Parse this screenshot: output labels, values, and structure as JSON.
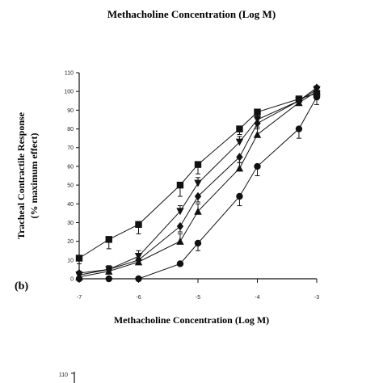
{
  "top_caption": "Methacholine Concentration (Log M)",
  "panel_label": "(b)",
  "next_panel_tick": "110",
  "chart_data": {
    "type": "line",
    "title": "",
    "xlabel": "Methacholine Concentration (Log M)",
    "ylabel_line1": "Tracheal Contractile Response",
    "ylabel_line2": "(% maximum effect)",
    "xlim": [
      -7,
      -3
    ],
    "ylim": [
      0,
      110
    ],
    "xticks": [
      -7,
      -6,
      -5,
      -4,
      -3
    ],
    "xtick_labels": [
      "-7",
      "-6",
      "-5",
      "-4",
      "-3"
    ],
    "yticks": [
      0,
      10,
      20,
      30,
      40,
      50,
      60,
      70,
      80,
      90,
      100,
      110
    ],
    "ytick_labels": [
      "0",
      "10",
      "20",
      "30",
      "40",
      "50",
      "60",
      "70",
      "80",
      "90",
      "100",
      "110"
    ],
    "grid": false,
    "series": [
      {
        "marker": "square",
        "x": [
          -7,
          -6.5,
          -6,
          -5.3,
          -5,
          -4.3,
          -4,
          -3.3,
          -3
        ],
        "y": [
          11,
          21,
          29,
          50,
          61,
          80,
          89,
          96,
          99
        ],
        "err": [
          3,
          5,
          5,
          6,
          5,
          3,
          3,
          2,
          2
        ]
      },
      {
        "marker": "triangle-down",
        "x": [
          -7,
          -6.5,
          -6,
          -5.3,
          -5,
          -4.3,
          -4,
          -3.3,
          -3
        ],
        "y": [
          2,
          5,
          12,
          36,
          51,
          73,
          85,
          95,
          101
        ],
        "err": [
          2,
          2,
          3,
          3,
          3,
          3,
          2,
          2,
          2
        ]
      },
      {
        "marker": "diamond",
        "x": [
          -7,
          -6.5,
          -6,
          -5.3,
          -5,
          -4.3,
          -4,
          -3.3,
          -3
        ],
        "y": [
          3,
          5,
          10,
          28,
          44,
          65,
          83,
          95,
          102
        ],
        "err": [
          1,
          1,
          2,
          3,
          3,
          3,
          3,
          2,
          2
        ]
      },
      {
        "marker": "triangle-up",
        "x": [
          -7,
          -6.5,
          -6,
          -5.3,
          -5,
          -4.3,
          -4,
          -3.3,
          -3
        ],
        "y": [
          1,
          4,
          9,
          20,
          36,
          59,
          77,
          94,
          100
        ],
        "err": [
          1,
          1,
          2,
          4,
          4,
          3,
          4,
          2,
          2
        ]
      },
      {
        "marker": "circle",
        "x": [
          -7,
          -6.5,
          -6,
          -5.3,
          -5,
          -4.3,
          -4,
          -3.3,
          -3
        ],
        "y": [
          0,
          0,
          0,
          8,
          19,
          44,
          60,
          80,
          97
        ],
        "err": [
          0,
          0,
          0,
          1,
          4,
          5,
          5,
          5,
          4
        ]
      }
    ]
  }
}
